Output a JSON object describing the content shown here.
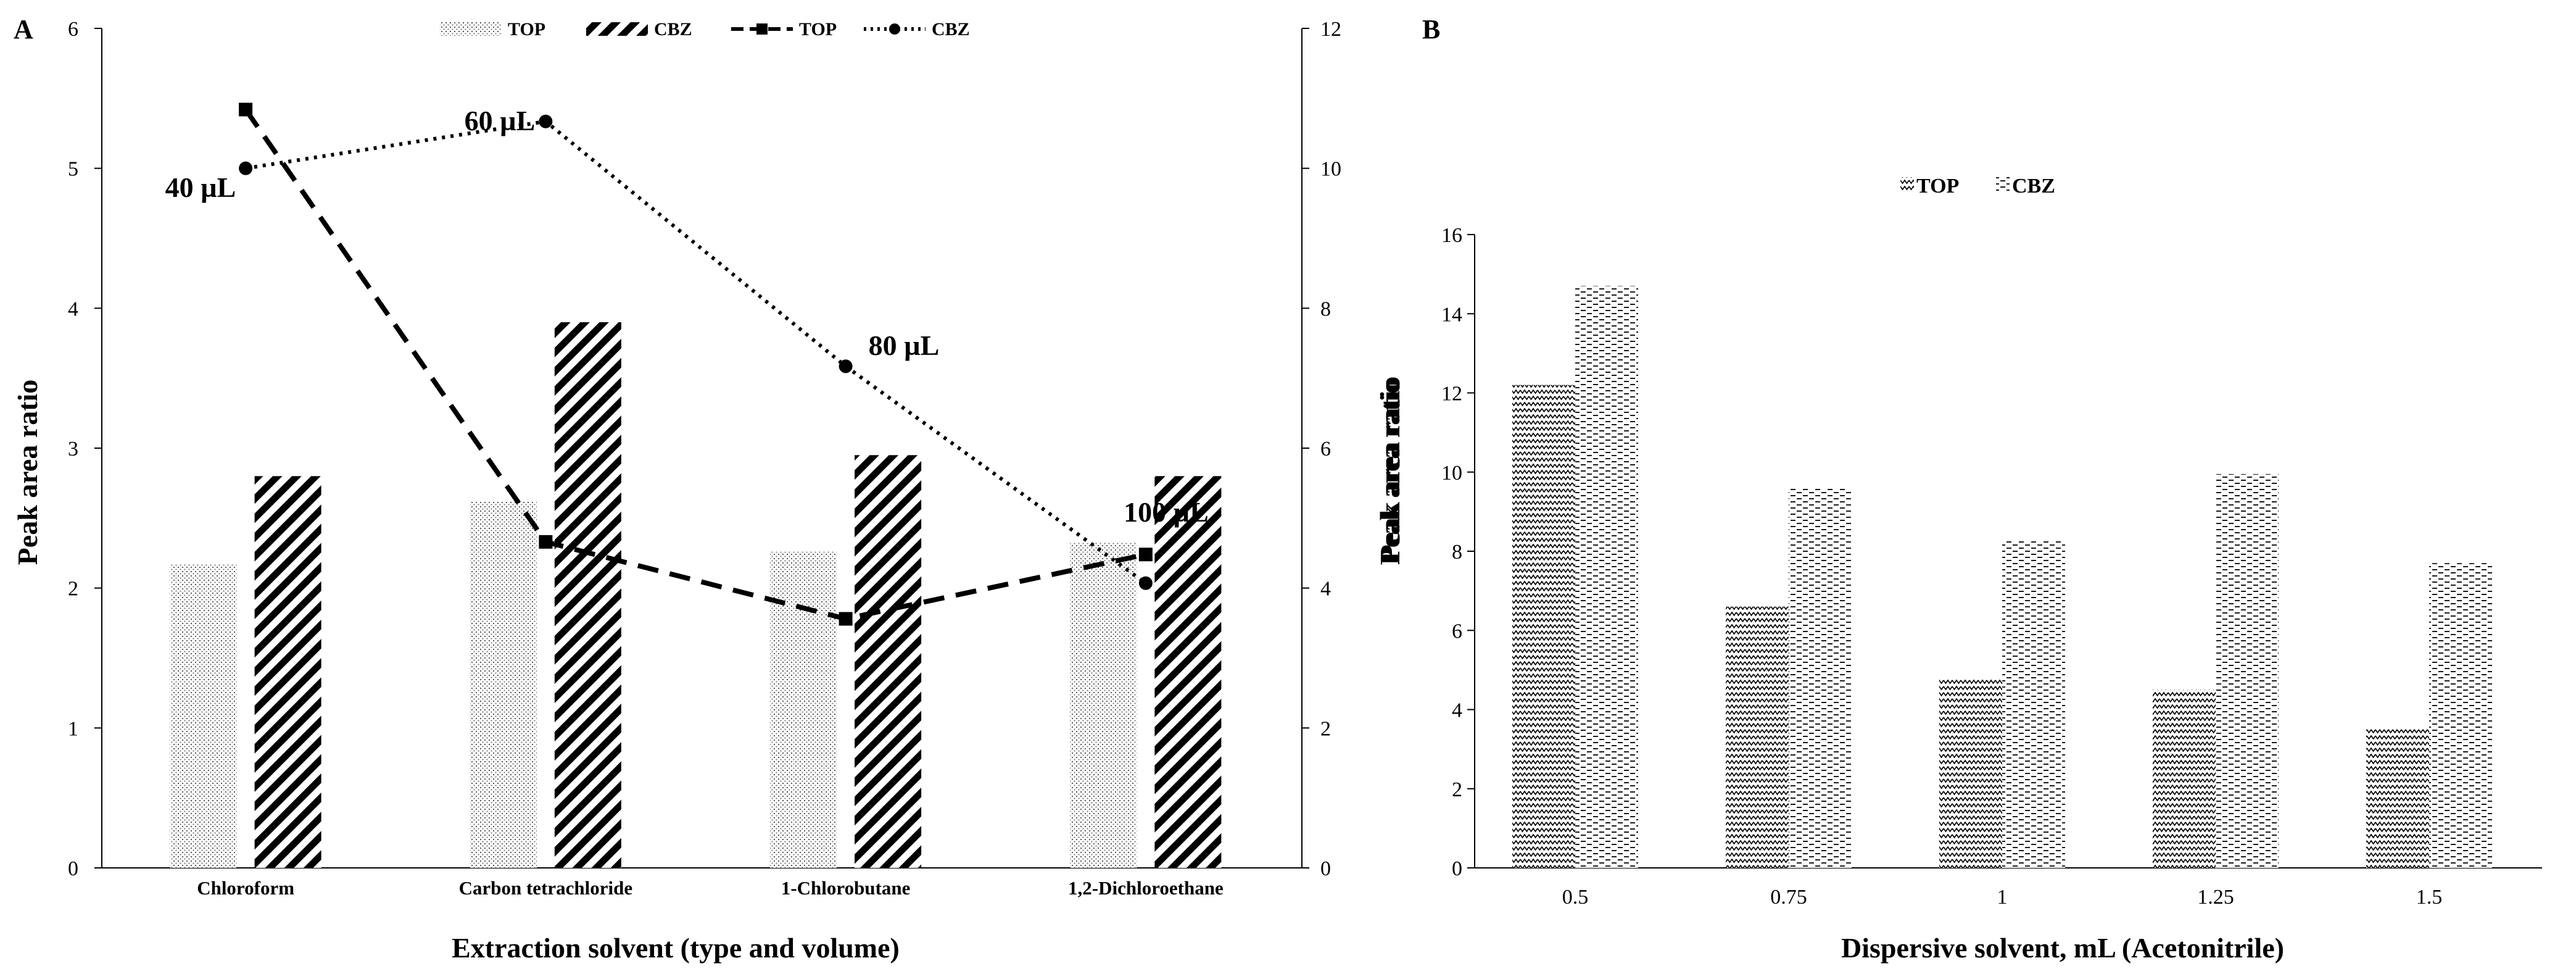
{
  "chart_data": [
    {
      "panel_label": "A",
      "type": "bar",
      "categories": [
        "Chloroform",
        "Carbon tetrachloride",
        "1-Chlorobutane",
        "1,2-Dichloroethane"
      ],
      "bar_series": [
        {
          "name": "TOP",
          "values": [
            2.17,
            2.62,
            2.26,
            2.33
          ],
          "pattern": "dots"
        },
        {
          "name": "CBZ",
          "values": [
            2.8,
            3.9,
            2.95,
            2.8
          ],
          "pattern": "diagonal"
        }
      ],
      "line_series": [
        {
          "name": "TOP",
          "axis": "left",
          "style": "dashed",
          "marker": "square",
          "values": [
            5.42,
            2.33,
            1.78,
            2.24
          ]
        },
        {
          "name": "CBZ",
          "axis": "right",
          "style": "dotted",
          "marker": "circle",
          "values": [
            10.0,
            10.67,
            7.17,
            4.07
          ]
        }
      ],
      "annotations": [
        "40 µL",
        "60 µL",
        "80 µL",
        "100 µL"
      ],
      "xlabel": "Extraction solvent (type and volume)",
      "ylabel": "Peak area ratio",
      "y2label": "Peak area ratio",
      "ylim": [
        0,
        6
      ],
      "y2lim": [
        0,
        12
      ],
      "yticks": [
        "0",
        "1",
        "2",
        "3",
        "4",
        "5",
        "6"
      ],
      "y2ticks": [
        "0",
        "2",
        "4",
        "6",
        "8",
        "10",
        "12"
      ],
      "legend_position": "top"
    },
    {
      "panel_label": "B",
      "type": "bar",
      "categories": [
        "0.5",
        "0.75",
        "1",
        "1.25",
        "1.5"
      ],
      "series": [
        {
          "name": "TOP",
          "values": [
            12.2,
            6.6,
            4.8,
            4.5,
            3.5
          ],
          "pattern": "zigzag"
        },
        {
          "name": "CBZ",
          "values": [
            14.7,
            9.6,
            8.25,
            9.95,
            7.7
          ],
          "pattern": "dashes"
        }
      ],
      "xlabel": "Dispersive solvent, mL (Acetonitrile)",
      "ylabel": "Peak area ratio",
      "ylim": [
        0,
        16
      ],
      "yticks": [
        "0",
        "2",
        "4",
        "6",
        "8",
        "10",
        "12",
        "14",
        "16"
      ],
      "legend_position": "top"
    }
  ]
}
